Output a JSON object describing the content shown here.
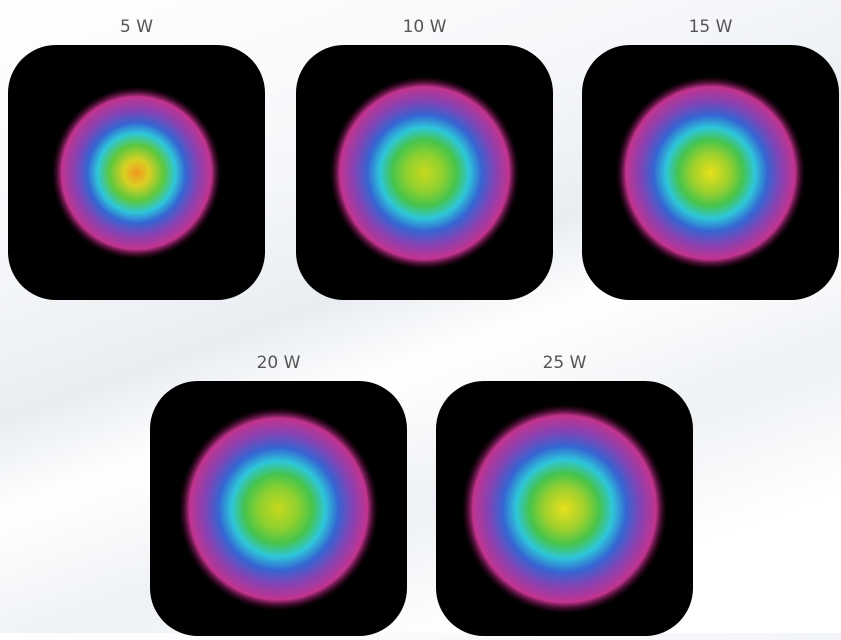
{
  "panels": [
    {
      "label": "5 W"
    },
    {
      "label": "10 W"
    },
    {
      "label": "15 W"
    },
    {
      "label": "20 W"
    },
    {
      "label": "25 W"
    }
  ]
}
